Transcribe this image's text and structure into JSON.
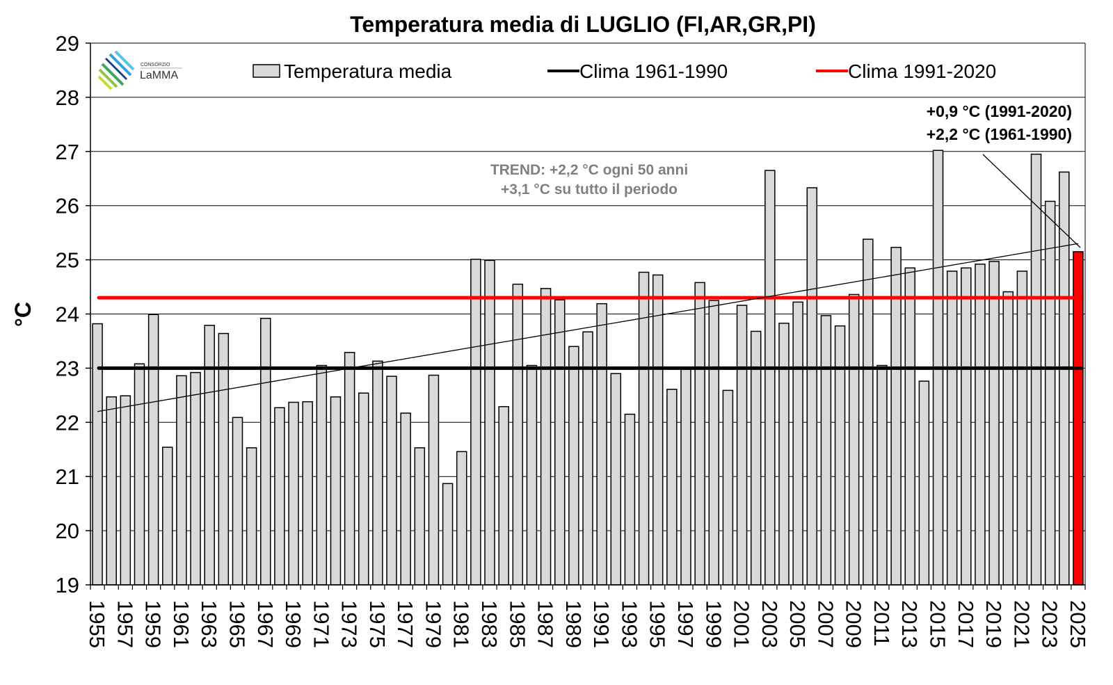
{
  "chart_data": {
    "type": "bar",
    "title": "Temperatura media di LUGLIO (FI,AR,GR,PI)",
    "xlabel": "",
    "ylabel": "°C",
    "ylim": [
      19,
      29
    ],
    "yticks": [
      19,
      20,
      21,
      22,
      23,
      24,
      25,
      26,
      27,
      28,
      29
    ],
    "grid": true,
    "legend_position": "top",
    "categories": [
      1955,
      1956,
      1957,
      1958,
      1959,
      1960,
      1961,
      1962,
      1963,
      1964,
      1965,
      1966,
      1967,
      1968,
      1969,
      1970,
      1971,
      1972,
      1973,
      1974,
      1975,
      1976,
      1977,
      1978,
      1979,
      1980,
      1981,
      1982,
      1983,
      1984,
      1985,
      1986,
      1987,
      1988,
      1989,
      1990,
      1991,
      1992,
      1993,
      1994,
      1995,
      1996,
      1997,
      1998,
      1999,
      2000,
      2001,
      2002,
      2003,
      2004,
      2005,
      2006,
      2007,
      2008,
      2009,
      2010,
      2011,
      2012,
      2013,
      2014,
      2015,
      2016,
      2017,
      2018,
      2019,
      2020,
      2021,
      2022,
      2023,
      2024,
      2025
    ],
    "xtick_labels": [
      "1955",
      "1957",
      "1959",
      "1961",
      "1963",
      "1965",
      "1967",
      "1969",
      "1971",
      "1973",
      "1975",
      "1977",
      "1979",
      "1981",
      "1983",
      "1985",
      "1987",
      "1989",
      "1991",
      "1993",
      "1995",
      "1997",
      "1999",
      "2001",
      "2003",
      "2005",
      "2007",
      "2009",
      "2011",
      "2013",
      "2015",
      "2017",
      "2019",
      "2021",
      "2023",
      "2025"
    ],
    "series": [
      {
        "name": "Temperatura media",
        "color": "#d9d9d9",
        "highlight_last_color": "#ff0000",
        "values": [
          23.82,
          22.47,
          22.49,
          23.08,
          23.99,
          21.54,
          22.86,
          22.92,
          23.79,
          23.64,
          22.09,
          21.53,
          23.92,
          22.27,
          22.37,
          22.38,
          23.05,
          22.47,
          23.29,
          22.54,
          23.13,
          22.85,
          22.17,
          21.53,
          22.87,
          20.87,
          21.46,
          25.01,
          24.99,
          22.29,
          24.55,
          23.05,
          24.47,
          24.26,
          23.4,
          23.67,
          24.19,
          22.9,
          22.15,
          24.77,
          24.72,
          22.61,
          22.98,
          24.58,
          24.25,
          22.59,
          24.16,
          23.68,
          26.65,
          23.83,
          24.22,
          26.33,
          23.97,
          23.78,
          24.36,
          25.38,
          23.05,
          25.23,
          24.85,
          22.76,
          27.02,
          24.79,
          24.85,
          24.92,
          24.97,
          24.41,
          24.79,
          26.95,
          26.08,
          26.62,
          25.15
        ]
      }
    ],
    "reference_lines": [
      {
        "name": "Clima 1961-1990",
        "value": 23.0,
        "color": "#000000"
      },
      {
        "name": "Clima 1991-2020",
        "value": 24.3,
        "color": "#ff0000"
      }
    ],
    "trend": {
      "start": [
        1955,
        22.2
      ],
      "end": [
        2025,
        25.3
      ]
    },
    "annotations": {
      "trend_line1": "TREND: +2,2 °C ogni 50 anni",
      "trend_line2": "+3,1 °C su tutto il periodo",
      "anomaly_line1": "+0,9 °C (1991-2020)",
      "anomaly_line2": "+2,2 °C (1961-1990)"
    }
  },
  "logo": {
    "small": "CONSORZIO",
    "name": "LaMMA"
  }
}
